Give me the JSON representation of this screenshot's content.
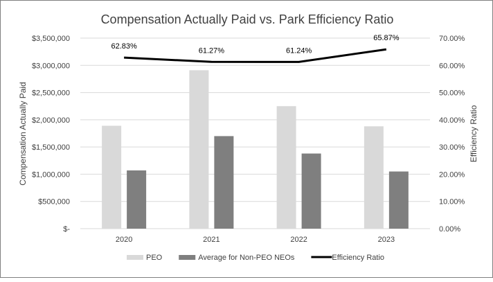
{
  "chart_data": {
    "type": "bar",
    "title": "Compensation Actually Paid vs. Park Efficiency Ratio",
    "categories": [
      "2020",
      "2021",
      "2022",
      "2023"
    ],
    "series": [
      {
        "name": "PEO",
        "kind": "bar",
        "axis": "left",
        "color": "#d9d9d9",
        "values": [
          1890000,
          2910000,
          2250000,
          1880000
        ]
      },
      {
        "name": "Average for Non-PEO NEOs",
        "kind": "bar",
        "axis": "left",
        "color": "#7f7f7f",
        "values": [
          1070000,
          1700000,
          1380000,
          1050000
        ]
      },
      {
        "name": "Efficiency Ratio",
        "kind": "line",
        "axis": "right",
        "color": "#000000",
        "values": [
          62.83,
          61.27,
          61.24,
          65.87
        ],
        "labels": [
          "62.83%",
          "61.27%",
          "61.24%",
          "65.87%"
        ]
      }
    ],
    "ylabel": "Compensation Actually Paid",
    "y2label": "Efficiency Ratio",
    "ylim": [
      0,
      3500000
    ],
    "y2lim": [
      0,
      70
    ],
    "yticks": [
      "$-",
      "$500,000",
      "$1,000,000",
      "$1,500,000",
      "$2,000,000",
      "$2,500,000",
      "$3,000,000",
      "$3,500,000"
    ],
    "y2ticks": [
      "0.00%",
      "10.00%",
      "20.00%",
      "30.00%",
      "40.00%",
      "50.00%",
      "60.00%",
      "70.00%"
    ],
    "grid": true,
    "legend_position": "bottom"
  }
}
